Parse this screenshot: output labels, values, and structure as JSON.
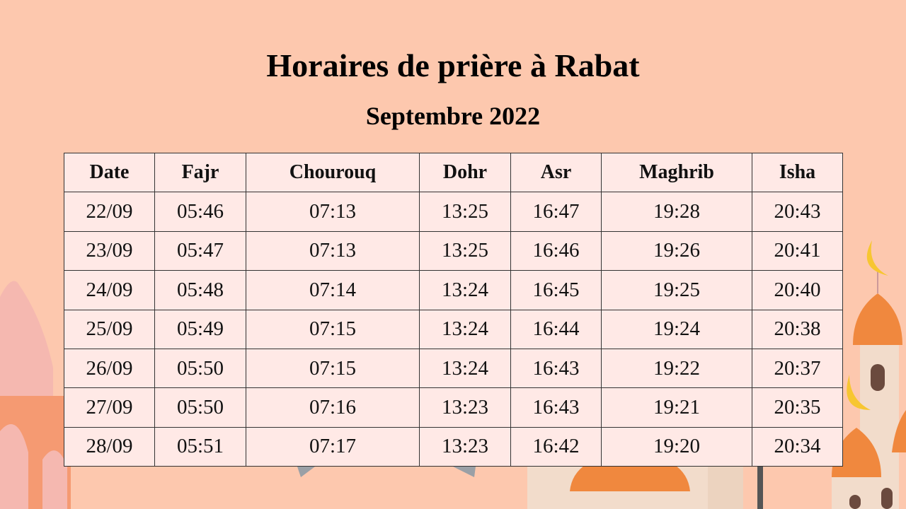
{
  "title": "Horaires de prière à Rabat",
  "subtitle": "Septembre 2022",
  "table": {
    "headers": [
      "Date",
      "Fajr",
      "Chourouq",
      "Dohr",
      "Asr",
      "Maghrib",
      "Isha"
    ],
    "rows": [
      [
        "22/09",
        "05:46",
        "07:13",
        "13:25",
        "16:47",
        "19:28",
        "20:43"
      ],
      [
        "23/09",
        "05:47",
        "07:13",
        "13:25",
        "16:46",
        "19:26",
        "20:41"
      ],
      [
        "24/09",
        "05:48",
        "07:14",
        "13:24",
        "16:45",
        "19:25",
        "20:40"
      ],
      [
        "25/09",
        "05:49",
        "07:15",
        "13:24",
        "16:44",
        "19:24",
        "20:38"
      ],
      [
        "26/09",
        "05:50",
        "07:15",
        "13:24",
        "16:43",
        "19:22",
        "20:37"
      ],
      [
        "27/09",
        "05:50",
        "07:16",
        "13:23",
        "16:43",
        "19:21",
        "20:35"
      ],
      [
        "28/09",
        "05:51",
        "07:17",
        "13:23",
        "16:42",
        "19:20",
        "20:34"
      ]
    ]
  },
  "colors": {
    "background": "#fdc8ae",
    "cell": "#ffe9e6",
    "dome": "#f0883e",
    "accent_pink": "#f5b8b0",
    "moon": "#f7c631"
  }
}
